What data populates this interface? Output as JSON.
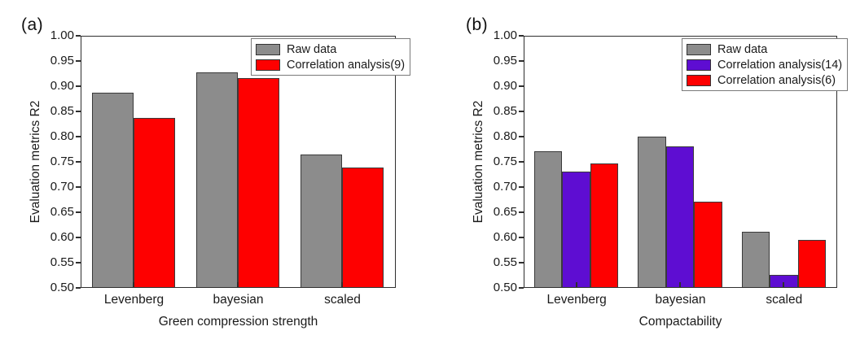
{
  "figure": {
    "background": "#ffffff",
    "text_color": "#1a1a1a",
    "axis_color": "#2e2e2e"
  },
  "chart_data": [
    {
      "type": "bar",
      "panel_label": "(a)",
      "title": "",
      "xlabel": "Green compression strength",
      "ylabel": "Evaluation metrics R2",
      "categories": [
        "Levenberg",
        "bayesian",
        "scaled"
      ],
      "series": [
        {
          "name": "Raw data",
          "color": "#8c8c8c",
          "values": [
            0.89,
            0.93,
            0.765
          ]
        },
        {
          "name": "Correlation analysis(9)",
          "color": "#fe0000",
          "values": [
            0.838,
            0.918,
            0.74
          ]
        }
      ],
      "ylim": [
        0.5,
        1.0
      ],
      "ytick_step": 0.05,
      "ytick_format_decimals": 2,
      "grid": false,
      "legend_position": "top-right",
      "bar_edge_color": "#3a3a3a"
    },
    {
      "type": "bar",
      "panel_label": "(b)",
      "title": "",
      "xlabel": "Compactability",
      "ylabel": "Evaluation metrics R2",
      "categories": [
        "Levenberg",
        "bayesian",
        "scaled"
      ],
      "series": [
        {
          "name": "Raw data",
          "color": "#8c8c8c",
          "values": [
            0.772,
            0.802,
            0.61
          ]
        },
        {
          "name": "Correlation analysis(14)",
          "color": "#5e0dd2",
          "values": [
            0.731,
            0.781,
            0.525
          ]
        },
        {
          "name": "Correlation analysis(6)",
          "color": "#fe0000",
          "values": [
            0.747,
            0.671,
            0.594
          ]
        }
      ],
      "ylim": [
        0.5,
        1.0
      ],
      "ytick_step": 0.05,
      "ytick_format_decimals": 2,
      "grid": false,
      "legend_position": "top-right",
      "bar_edge_color": "#3a3a3a"
    }
  ]
}
